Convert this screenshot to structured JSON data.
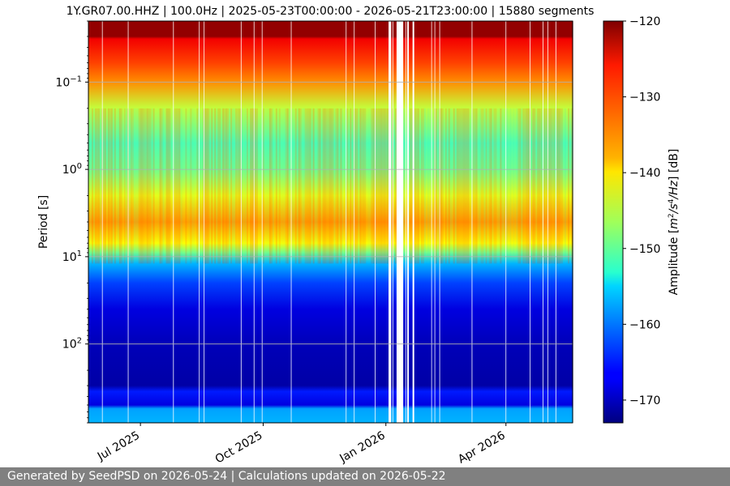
{
  "chart_data": {
    "type": "heatmap",
    "title": "1Y.GR07.00.HHZ | 100.0Hz | 2025-05-23T00:00:00 - 2026-05-21T23:00:00 | 15880 segments",
    "xlabel": "",
    "ylabel": "Period [s]",
    "x_range": [
      "2025-05-23",
      "2026-05-21"
    ],
    "x_ticks": [
      {
        "date": "2025-07-01",
        "label": "Jul 2025"
      },
      {
        "date": "2025-10-01",
        "label": "Oct 2025"
      },
      {
        "date": "2026-01-01",
        "label": "Jan 2026"
      },
      {
        "date": "2026-04-01",
        "label": "Apr 2026"
      }
    ],
    "y_scale": "log",
    "y_inverted": true,
    "y_range": [
      0.02,
      800
    ],
    "y_ticks": [
      {
        "value": 0.1,
        "base": "10",
        "exp": "−1"
      },
      {
        "value": 1,
        "base": "10",
        "exp": "0"
      },
      {
        "value": 10,
        "base": "10",
        "exp": "1"
      },
      {
        "value": 100,
        "base": "10",
        "exp": "2"
      }
    ],
    "grid": true,
    "colormap": "jet",
    "colorbar": {
      "label": "Amplitude [m²/s⁴/Hz] [dB]",
      "label_text": "Amplitude [",
      "label_m": "m",
      "label_sup1": "2",
      "label_s": "/s",
      "label_sup2": "4",
      "label_hz": "/Hz",
      "label_end": "] [dB]",
      "min": -173,
      "max": -120,
      "ticks": [
        -120,
        -130,
        -140,
        -150,
        -160,
        -170
      ]
    },
    "band_profile_db": [
      {
        "period": 0.02,
        "db": -121
      },
      {
        "period": 0.03,
        "db": -121
      },
      {
        "period": 0.032,
        "db": -126
      },
      {
        "period": 0.06,
        "db": -130
      },
      {
        "period": 0.1,
        "db": -134
      },
      {
        "period": 0.2,
        "db": -143
      },
      {
        "period": 0.5,
        "db": -149
      },
      {
        "period": 1.0,
        "db": -147
      },
      {
        "period": 2.0,
        "db": -141
      },
      {
        "period": 4.0,
        "db": -135
      },
      {
        "period": 7.0,
        "db": -140
      },
      {
        "period": 9.0,
        "db": -147
      },
      {
        "period": 12.0,
        "db": -157
      },
      {
        "period": 20.0,
        "db": -163
      },
      {
        "period": 40.0,
        "db": -168
      },
      {
        "period": 100.0,
        "db": -170
      },
      {
        "period": 300.0,
        "db": -171
      },
      {
        "period": 350.0,
        "db": -165
      },
      {
        "period": 500.0,
        "db": -168
      },
      {
        "period": 550.0,
        "db": -158
      },
      {
        "period": 800.0,
        "db": -157
      }
    ],
    "data_gaps": [
      {
        "start": "2026-01-03",
        "end": "2026-01-05"
      },
      {
        "start": "2026-01-09",
        "end": "2026-01-14"
      },
      {
        "start": "2026-01-17",
        "end": "2026-01-18"
      },
      {
        "start": "2026-01-21",
        "end": "2026-01-22"
      }
    ]
  },
  "footer": {
    "text": "Generated by SeedPSD on 2026-05-24 | Calculations updated on 2026-05-22"
  }
}
